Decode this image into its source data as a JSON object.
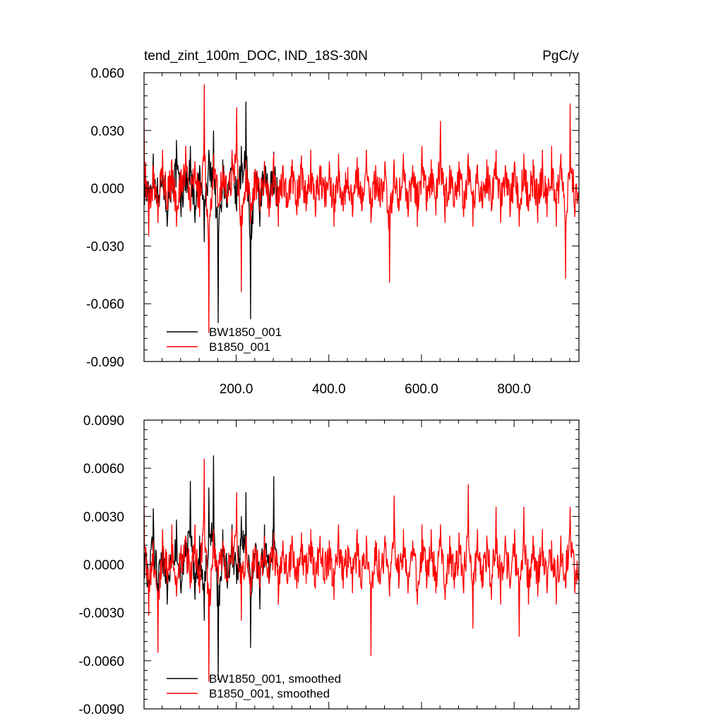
{
  "figure": {
    "title_left": "tend_zint_100m_DOC, IND_18S-30N",
    "title_right": "PgC/y"
  },
  "chart_data": [
    {
      "type": "line",
      "title": "tend_zint_100m_DOC, IND_18S-30N",
      "units": "PgC/y",
      "xlim": [
        1,
        940
      ],
      "ylim": [
        -0.09,
        0.06
      ],
      "x_ticks": [
        200,
        400,
        600,
        800
      ],
      "x_tick_labels": [
        "200.0",
        "400.0",
        "600.0",
        "800.0"
      ],
      "y_ticks": [
        0.06,
        0.03,
        0.0,
        -0.03,
        -0.06,
        -0.09
      ],
      "y_tick_labels": [
        "0.060",
        "0.030",
        "0.000",
        "-0.030",
        "-0.060",
        "-0.090"
      ],
      "legend_position": "bottom-left",
      "series": [
        {
          "name": "BW1850_001",
          "color": "#000000",
          "x_range": [
            1,
            290
          ],
          "values_sampled_every_10": [
            0.002,
            -0.012,
            0.018,
            -0.008,
            0.011,
            -0.02,
            0.006,
            0.025,
            -0.015,
            0.009,
            0.022,
            -0.018,
            0.012,
            -0.028,
            0.02,
            0.03,
            -0.07,
            0.015,
            -0.01,
            0.018,
            -0.012,
            0.022,
            0.045,
            -0.068,
            0.01,
            -0.02,
            0.014,
            -0.009,
            0.019,
            -0.015
          ]
        },
        {
          "name": "B1850_001",
          "color": "#ff0000",
          "x_range": [
            1,
            940
          ],
          "values_sampled_every_10": [
            0.035,
            -0.025,
            0.012,
            -0.018,
            0.02,
            -0.01,
            0.015,
            -0.02,
            0.01,
            0.022,
            -0.012,
            0.014,
            -0.015,
            0.054,
            -0.075,
            0.018,
            -0.01,
            0.012,
            -0.008,
            0.02,
            0.042,
            -0.054,
            0.015,
            -0.018,
            0.01,
            -0.012,
            0.014,
            -0.015,
            0.018,
            -0.02,
            0.012,
            -0.01,
            0.015,
            -0.014,
            0.017,
            -0.012,
            0.02,
            -0.015,
            0.012,
            -0.01,
            0.014,
            -0.02,
            0.018,
            -0.012,
            0.011,
            -0.015,
            0.016,
            -0.012,
            0.02,
            -0.018,
            0.012,
            -0.01,
            0.014,
            -0.049,
            0.015,
            -0.012,
            0.018,
            -0.015,
            0.012,
            -0.02,
            0.022,
            -0.012,
            0.015,
            -0.014,
            0.035,
            -0.018,
            0.012,
            -0.01,
            0.014,
            -0.015,
            0.018,
            -0.02,
            0.012,
            -0.01,
            0.015,
            -0.012,
            0.02,
            -0.018,
            0.012,
            -0.015,
            0.014,
            -0.02,
            0.018,
            -0.012,
            0.015,
            -0.018,
            0.02,
            -0.015,
            0.022,
            -0.02,
            0.018,
            -0.047,
            0.044,
            -0.015
          ]
        }
      ]
    },
    {
      "type": "line",
      "xlim": [
        1,
        940
      ],
      "ylim": [
        -0.009,
        0.009
      ],
      "y_ticks": [
        0.009,
        0.006,
        0.003,
        0.0,
        -0.003,
        -0.006,
        -0.009
      ],
      "y_tick_labels": [
        "0.0090",
        "0.0060",
        "0.0030",
        "0.0000",
        "-0.0030",
        "-0.0060",
        "-0.0090"
      ],
      "legend_position": "bottom-left",
      "series": [
        {
          "name": "BW1850_001, smoothed",
          "color": "#000000",
          "x_range": [
            1,
            290
          ],
          "values_sampled_every_10": [
            0.0002,
            -0.0015,
            0.0035,
            -0.002,
            0.0012,
            -0.0025,
            0.0008,
            0.0028,
            -0.0018,
            0.0015,
            0.0052,
            -0.0022,
            0.0018,
            -0.0035,
            0.0048,
            0.0068,
            -0.0072,
            0.0022,
            -0.0015,
            0.0025,
            -0.0012,
            0.003,
            0.0045,
            -0.0052,
            0.0012,
            -0.0028,
            0.0025,
            -0.0012,
            0.0055,
            -0.0018
          ]
        },
        {
          "name": "B1850_001, smoothed",
          "color": "#ff0000",
          "x_range": [
            1,
            940
          ],
          "values_sampled_every_10": [
            0.0038,
            -0.0032,
            0.0015,
            -0.0055,
            0.0022,
            -0.0012,
            0.0025,
            -0.002,
            0.0012,
            0.0018,
            -0.0015,
            0.0025,
            -0.0018,
            0.0066,
            -0.0073,
            0.0022,
            -0.0012,
            0.0015,
            -0.001,
            0.0022,
            0.0045,
            -0.0035,
            0.0018,
            -0.002,
            0.0012,
            -0.0015,
            0.0018,
            -0.0012,
            0.002,
            -0.0025,
            0.0015,
            -0.0012,
            0.0018,
            -0.0015,
            0.002,
            -0.0012,
            0.0022,
            -0.0015,
            0.0018,
            -0.0012,
            0.0015,
            -0.0022,
            0.0025,
            -0.0015,
            0.0012,
            -0.0018,
            0.0022,
            -0.0015,
            0.0018,
            -0.0057,
            0.0015,
            -0.0012,
            0.0018,
            -0.002,
            0.0043,
            -0.0015,
            0.0022,
            -0.0018,
            0.0015,
            -0.0025,
            0.0025,
            -0.0015,
            0.0022,
            -0.0018,
            0.0025,
            -0.0022,
            0.0018,
            -0.0015,
            0.002,
            -0.0018,
            0.005,
            -0.004,
            0.0022,
            -0.0015,
            0.0018,
            -0.0022,
            0.0036,
            -0.0025,
            0.0018,
            -0.0015,
            0.0022,
            -0.0045,
            0.0036,
            -0.0025,
            0.0018,
            -0.002,
            0.0022,
            -0.0018,
            0.0015,
            -0.0025,
            0.0018,
            -0.0015,
            0.0036,
            -0.0018
          ]
        }
      ]
    }
  ]
}
